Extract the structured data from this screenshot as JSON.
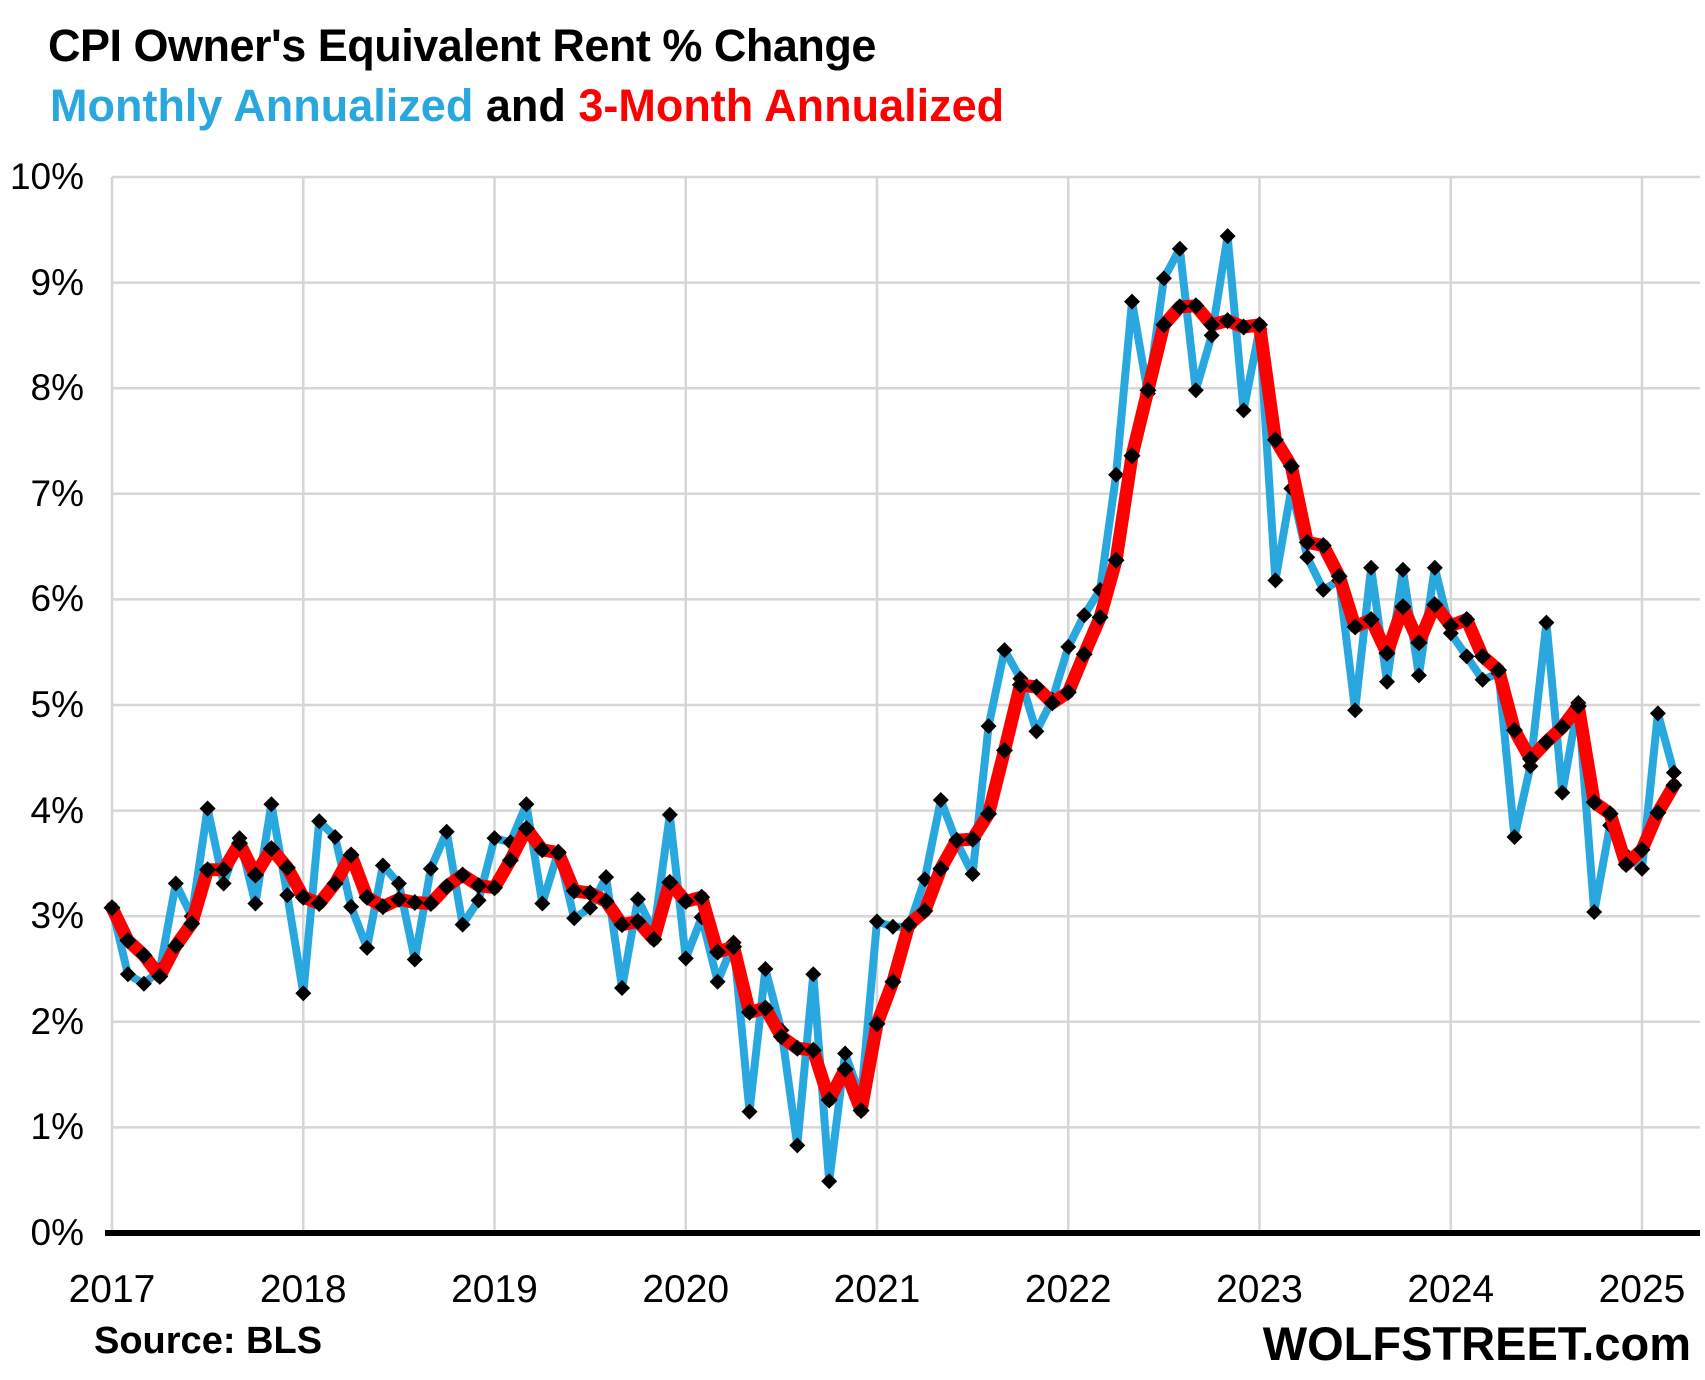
{
  "title": "CPI Owner's Equivalent Rent % Change",
  "subtitle": {
    "part1": "Monthly Annualized",
    "part2": " and ",
    "part3": "3-Month Annualized"
  },
  "footer": {
    "source": "Source: BLS",
    "branding": "WOLFSTREET.com"
  },
  "colors": {
    "monthly": "#29A8E0",
    "three_month": "#FE0000",
    "marker": "#000000",
    "grid": "#D6D6D6",
    "axis": "#000000",
    "text": "#000000"
  },
  "chart_data": {
    "type": "line",
    "title": "CPI Owner's Equivalent Rent % Change",
    "subtitle": "Monthly Annualized and 3-Month Annualized",
    "x_start": "2017-01",
    "x_end": "2025-03",
    "x_tick_labels": [
      "2017",
      "2018",
      "2019",
      "2020",
      "2021",
      "2022",
      "2023",
      "2024",
      "2025"
    ],
    "y_tick_labels": [
      "0%",
      "1%",
      "2%",
      "3%",
      "4%",
      "5%",
      "6%",
      "7%",
      "8%",
      "9%",
      "10%"
    ],
    "ylim": [
      0,
      10
    ],
    "grid": true,
    "legend_position": "in-subtitle",
    "marker": "black-diamond",
    "series": [
      {
        "name": "Monthly Annualized",
        "color": "#29A8E0",
        "values": [
          3.08,
          2.45,
          2.36,
          2.49,
          3.31,
          3.0,
          4.02,
          3.31,
          3.74,
          3.12,
          4.06,
          3.2,
          2.27,
          3.9,
          3.75,
          3.09,
          2.7,
          3.48,
          3.31,
          2.59,
          3.45,
          3.8,
          2.92,
          3.15,
          3.74,
          3.7,
          4.06,
          3.12,
          3.61,
          2.98,
          3.08,
          3.37,
          2.32,
          3.16,
          2.85,
          3.96,
          2.6,
          2.99,
          2.38,
          2.75,
          1.15,
          2.5,
          1.92,
          0.83,
          2.45,
          0.49,
          1.7,
          1.28,
          2.95,
          2.9,
          2.9,
          3.35,
          4.1,
          3.7,
          3.4,
          4.8,
          5.52,
          5.25,
          4.75,
          5.05,
          5.55,
          5.85,
          6.09,
          7.18,
          8.82,
          7.95,
          9.04,
          9.32,
          7.98,
          8.5,
          9.44,
          7.79,
          8.56,
          6.18,
          7.05,
          6.4,
          6.09,
          6.18,
          4.95,
          6.3,
          5.22,
          6.28,
          5.28,
          6.3,
          5.68,
          5.46,
          5.24,
          5.3,
          3.75,
          4.42,
          5.78,
          4.17,
          5.02,
          3.04,
          3.86,
          3.58,
          3.45,
          4.92,
          4.36
        ]
      },
      {
        "name": "3-Month Annualized",
        "color": "#FE0000",
        "values": [
          3.08,
          2.77,
          2.63,
          2.43,
          2.72,
          2.93,
          3.44,
          3.44,
          3.69,
          3.39,
          3.64,
          3.46,
          3.18,
          3.12,
          3.31,
          3.58,
          3.18,
          3.09,
          3.16,
          3.13,
          3.12,
          3.28,
          3.39,
          3.29,
          3.27,
          3.53,
          3.83,
          3.63,
          3.6,
          3.24,
          3.22,
          3.14,
          2.92,
          2.95,
          2.78,
          3.32,
          3.14,
          3.18,
          2.66,
          2.71,
          2.09,
          2.13,
          1.86,
          1.75,
          1.73,
          1.26,
          1.55,
          1.16,
          1.98,
          2.38,
          2.92,
          3.05,
          3.45,
          3.72,
          3.73,
          3.97,
          4.57,
          5.19,
          5.17,
          5.02,
          5.12,
          5.48,
          5.83,
          6.37,
          7.36,
          7.98,
          8.6,
          8.77,
          8.78,
          8.6,
          8.64,
          8.58,
          8.6,
          7.51,
          7.26,
          6.54,
          6.51,
          6.22,
          5.74,
          5.81,
          5.49,
          5.93,
          5.59,
          5.95,
          5.75,
          5.81,
          5.46,
          5.33,
          4.76,
          4.49,
          4.65,
          4.79,
          4.99,
          4.08,
          3.97,
          3.49,
          3.63,
          3.98,
          4.24
        ]
      }
    ]
  }
}
